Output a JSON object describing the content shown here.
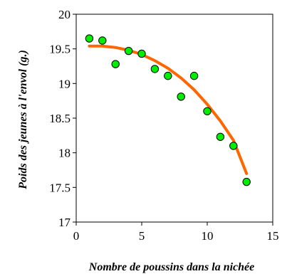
{
  "chart_data": {
    "type": "scatter",
    "title": "",
    "xlabel": "Nombre de poussins dans la nichée",
    "ylabel": "Poids des jeunes à l'envol (g.)",
    "xlim": [
      0,
      15
    ],
    "ylim": [
      17,
      20
    ],
    "xticks": [
      0,
      5,
      10,
      15
    ],
    "yticks": [
      17,
      17.5,
      18,
      18.5,
      19,
      19.5,
      20
    ],
    "xtick_labels": [
      "0",
      "5",
      "10",
      "15"
    ],
    "ytick_labels": [
      "17",
      "17.5",
      "18",
      "18.5",
      "19",
      "19.5",
      "20"
    ],
    "grid": false,
    "legend": false,
    "series": [
      {
        "type": "scatter",
        "marker_color": "#00ee00",
        "x": [
          1,
          2,
          3,
          4,
          5,
          6,
          7,
          8,
          9,
          10,
          11,
          12,
          13
        ],
        "y": [
          19.65,
          19.62,
          19.28,
          19.47,
          19.43,
          19.21,
          19.11,
          18.81,
          19.11,
          18.6,
          18.23,
          18.1,
          17.58
        ]
      },
      {
        "type": "line",
        "line_color": "#ff6600",
        "x": [
          1,
          2,
          3,
          4,
          5,
          6,
          7,
          8,
          9,
          10,
          11,
          12,
          13
        ],
        "y": [
          19.54,
          19.54,
          19.52,
          19.48,
          19.42,
          19.33,
          19.22,
          19.08,
          18.91,
          18.7,
          18.46,
          18.18,
          17.7
        ]
      }
    ]
  }
}
